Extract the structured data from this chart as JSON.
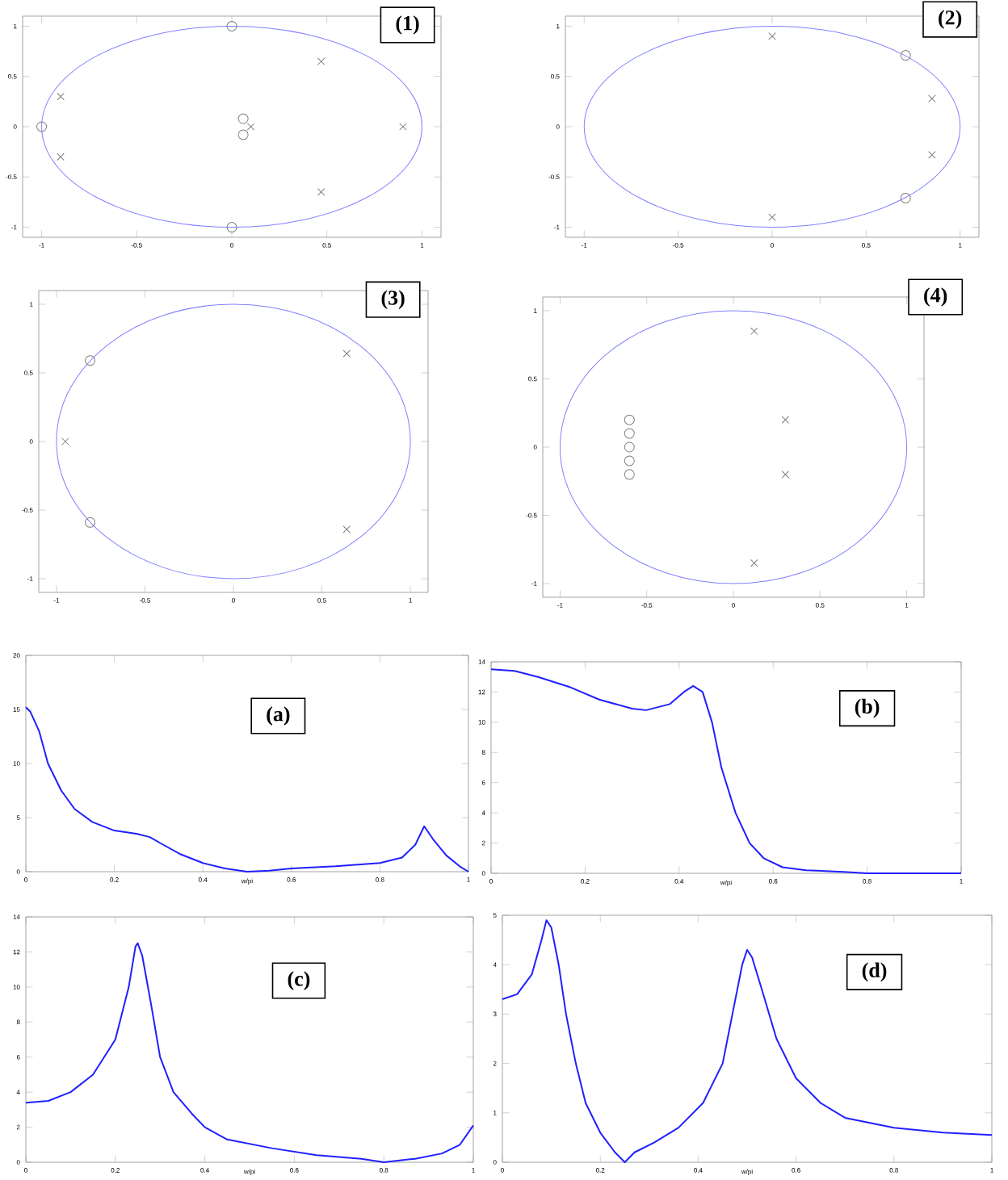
{
  "chart_data": [
    {
      "type": "scatter",
      "annotations": [
        "(1)"
      ],
      "xlim": [
        -1.1,
        1.1
      ],
      "ylim": [
        -1.1,
        1.1
      ],
      "xticks": [
        -1,
        -0.5,
        0,
        0.5,
        1
      ],
      "yticks": [
        -1,
        -0.5,
        0,
        0.5,
        1
      ],
      "series": [
        {
          "marker": "cross",
          "color": "#808080",
          "x": [
            0.47,
            0.47,
            0.9,
            -0.9,
            -0.9,
            0.1
          ],
          "values": [
            0.65,
            -0.65,
            0,
            0.3,
            -0.3,
            0
          ]
        },
        {
          "marker": "circle",
          "color": "#808080",
          "x": [
            0,
            0,
            -1,
            0.06,
            0.06
          ],
          "values": [
            1,
            -1,
            0,
            0.08,
            -0.08
          ]
        }
      ]
    },
    {
      "type": "scatter",
      "annotations": [
        "(2)"
      ],
      "xlim": [
        -1.1,
        1.1
      ],
      "ylim": [
        -1.1,
        1.1
      ],
      "xticks": [
        -1,
        -0.5,
        0,
        0.5,
        1
      ],
      "yticks": [
        -1,
        -0.5,
        0,
        0.5,
        1
      ],
      "series": [
        {
          "marker": "cross",
          "color": "#808080",
          "x": [
            0,
            0,
            0.85,
            0.85
          ],
          "values": [
            0.9,
            -0.9,
            0.28,
            -0.28
          ]
        },
        {
          "marker": "circle",
          "color": "#808080",
          "x": [
            0.71,
            0.71
          ],
          "values": [
            0.71,
            -0.71
          ]
        }
      ]
    },
    {
      "type": "scatter",
      "annotations": [
        "(3)"
      ],
      "xlim": [
        -1.1,
        1.1
      ],
      "ylim": [
        -1.1,
        1.1
      ],
      "xticks": [
        -1,
        -0.5,
        0,
        0.5,
        1
      ],
      "yticks": [
        -1,
        -0.5,
        0,
        0.5,
        1
      ],
      "series": [
        {
          "marker": "cross",
          "color": "#808080",
          "x": [
            0.64,
            0.64,
            -0.95
          ],
          "values": [
            0.64,
            -0.64,
            0
          ]
        },
        {
          "marker": "circle",
          "color": "#808080",
          "x": [
            -0.81,
            -0.81
          ],
          "values": [
            0.59,
            -0.59
          ]
        }
      ]
    },
    {
      "type": "scatter",
      "annotations": [
        "(4)"
      ],
      "xlim": [
        -1.1,
        1.1
      ],
      "ylim": [
        -1.1,
        1.1
      ],
      "xticks": [
        -1,
        -0.5,
        0,
        0.5,
        1
      ],
      "yticks": [
        -1,
        -0.5,
        0,
        0.5,
        1
      ],
      "series": [
        {
          "marker": "cross",
          "color": "#808080",
          "x": [
            0.12,
            0.12,
            0.3,
            0.3
          ],
          "values": [
            0.85,
            -0.85,
            0.2,
            -0.2
          ]
        },
        {
          "marker": "circle",
          "color": "#808080",
          "x": [
            -0.6,
            -0.6,
            -0.6,
            -0.6,
            -0.6
          ],
          "values": [
            0.2,
            0.1,
            0,
            -0.1,
            -0.2
          ]
        }
      ]
    },
    {
      "type": "line",
      "annotations": [
        "(a)"
      ],
      "xlabel": "w/pi",
      "color": "#2020ff",
      "xlim": [
        0,
        1
      ],
      "ylim": [
        0,
        20
      ],
      "xticks": [
        0,
        0.2,
        0.4,
        0.6,
        0.8,
        1
      ],
      "yticks": [
        0,
        5,
        10,
        15,
        20
      ],
      "x": [
        0,
        0.01,
        0.03,
        0.05,
        0.08,
        0.11,
        0.15,
        0.2,
        0.25,
        0.28,
        0.31,
        0.35,
        0.4,
        0.45,
        0.5,
        0.55,
        0.6,
        0.7,
        0.8,
        0.85,
        0.88,
        0.9,
        0.92,
        0.95,
        0.98,
        1
      ],
      "values": [
        15.2,
        14.8,
        13,
        10,
        7.5,
        5.8,
        4.6,
        3.8,
        3.5,
        3.2,
        2.5,
        1.6,
        0.8,
        0.3,
        0,
        0.1,
        0.3,
        0.5,
        0.8,
        1.3,
        2.5,
        4.2,
        3,
        1.5,
        0.5,
        0
      ]
    },
    {
      "type": "line",
      "annotations": [
        "(b)"
      ],
      "xlabel": "w/pi",
      "color": "#2020ff",
      "xlim": [
        0,
        1
      ],
      "ylim": [
        0,
        14
      ],
      "xticks": [
        0,
        0.2,
        0.4,
        0.6,
        0.8,
        1
      ],
      "yticks": [
        0,
        2,
        4,
        6,
        8,
        10,
        12,
        14
      ],
      "x": [
        0,
        0.05,
        0.1,
        0.17,
        0.23,
        0.3,
        0.33,
        0.38,
        0.41,
        0.43,
        0.45,
        0.47,
        0.49,
        0.52,
        0.55,
        0.58,
        0.62,
        0.67,
        0.75,
        0.8,
        1
      ],
      "values": [
        13.5,
        13.4,
        13,
        12.3,
        11.5,
        10.9,
        10.8,
        11.2,
        12,
        12.4,
        12,
        10,
        7,
        4,
        2,
        1,
        0.4,
        0.2,
        0.1,
        0,
        0
      ]
    },
    {
      "type": "line",
      "annotations": [
        "(c)"
      ],
      "xlabel": "w/pi",
      "color": "#2020ff",
      "xlim": [
        0,
        1
      ],
      "ylim": [
        0,
        14
      ],
      "xticks": [
        0,
        0.2,
        0.4,
        0.6,
        0.8,
        1
      ],
      "yticks": [
        0,
        2,
        4,
        6,
        8,
        10,
        12,
        14
      ],
      "x": [
        0,
        0.05,
        0.1,
        0.15,
        0.2,
        0.23,
        0.245,
        0.25,
        0.26,
        0.28,
        0.3,
        0.33,
        0.37,
        0.4,
        0.45,
        0.55,
        0.65,
        0.75,
        0.8,
        0.87,
        0.93,
        0.97,
        1
      ],
      "values": [
        3.4,
        3.5,
        4,
        5,
        7,
        10,
        12.3,
        12.5,
        11.8,
        9,
        6,
        4,
        2.8,
        2,
        1.3,
        0.8,
        0.4,
        0.2,
        0,
        0.2,
        0.5,
        1,
        2.1
      ]
    },
    {
      "type": "line",
      "annotations": [
        "(d)"
      ],
      "xlabel": "w/pi",
      "color": "#2020ff",
      "xlim": [
        0,
        1
      ],
      "ylim": [
        0,
        5
      ],
      "xticks": [
        0,
        0.2,
        0.4,
        0.6,
        0.8,
        1
      ],
      "yticks": [
        0,
        1,
        2,
        3,
        4,
        5
      ],
      "x": [
        0,
        0.03,
        0.06,
        0.08,
        0.09,
        0.1,
        0.115,
        0.13,
        0.15,
        0.17,
        0.2,
        0.23,
        0.25,
        0.27,
        0.31,
        0.36,
        0.41,
        0.45,
        0.47,
        0.49,
        0.5,
        0.51,
        0.53,
        0.56,
        0.6,
        0.65,
        0.7,
        0.8,
        0.9,
        1
      ],
      "values": [
        3.3,
        3.4,
        3.8,
        4.5,
        4.9,
        4.75,
        4,
        3,
        2,
        1.2,
        0.6,
        0.2,
        0,
        0.2,
        0.4,
        0.7,
        1.2,
        2,
        3,
        4,
        4.3,
        4.15,
        3.5,
        2.5,
        1.7,
        1.2,
        0.9,
        0.7,
        0.6,
        0.55
      ]
    }
  ]
}
